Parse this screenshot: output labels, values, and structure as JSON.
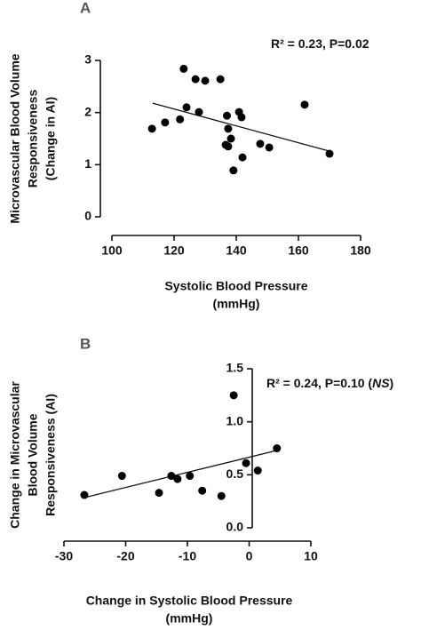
{
  "chart_data": [
    {
      "type": "scatter",
      "panel": "A",
      "annotation": [
        "R² = 0.23, P=0.02"
      ],
      "x_label": [
        "Systolic Blood Pressure",
        "(mmHg)"
      ],
      "y_label": [
        "Microvascular Blood Volume",
        "Responsiveness",
        "(Change in AI)"
      ],
      "color": "#000000",
      "x": [
        112.9,
        117.1,
        121.9,
        123.1,
        124,
        126.9,
        128,
        130,
        134.9,
        136.6,
        137,
        137.4,
        137.4,
        138.3,
        139.1,
        140.9,
        141.7,
        142,
        147.7,
        150.6,
        162,
        170
      ],
      "y": [
        1.69,
        1.81,
        1.87,
        2.84,
        2.1,
        2.64,
        2.01,
        2.61,
        2.64,
        1.38,
        1.94,
        1.69,
        1.35,
        1.5,
        0.89,
        2.01,
        1.91,
        1.14,
        1.4,
        1.33,
        2.15,
        1.21
      ],
      "fit": {
        "x": [
          113.1,
          170
        ],
        "y": [
          2.18,
          1.26
        ]
      },
      "xlim": [
        100,
        180
      ],
      "ylim": [
        0,
        3
      ],
      "xticks": [
        100,
        120,
        140,
        160,
        180
      ],
      "yticks": [
        0,
        1,
        2,
        3
      ]
    },
    {
      "type": "scatter",
      "panel": "B",
      "annotation": [
        "R² = 0.24, P=0.10 (",
        "NS",
        ")"
      ],
      "x_label": [
        "Change in Systolic Blood Pressure",
        "(mmHg)"
      ],
      "y_label": [
        "Change in Microvascular",
        "Blood Volume",
        "Responsiveness (AI)"
      ],
      "color": "#000000",
      "x": [
        -26.7,
        -20.6,
        -14.6,
        -12.6,
        -11.6,
        -9.6,
        -7.6,
        -4.5,
        -2.5,
        -0.5,
        1.4,
        4.5
      ],
      "y": [
        0.31,
        0.49,
        0.33,
        0.49,
        0.46,
        0.49,
        0.35,
        0.3,
        1.25,
        0.61,
        0.54,
        0.75
      ],
      "fit": {
        "x": [
          -26.7,
          4.5
        ],
        "y": [
          0.285,
          0.73
        ]
      },
      "xlim": [
        -30,
        10
      ],
      "ylim": [
        0,
        1.5
      ],
      "xticks": [
        -30,
        -20,
        -10,
        0,
        10
      ],
      "yticks": [
        {
          "value": 0,
          "label": "0.0"
        },
        0.5,
        {
          "value": 1,
          "label": "1.0"
        },
        1.5
      ]
    }
  ]
}
